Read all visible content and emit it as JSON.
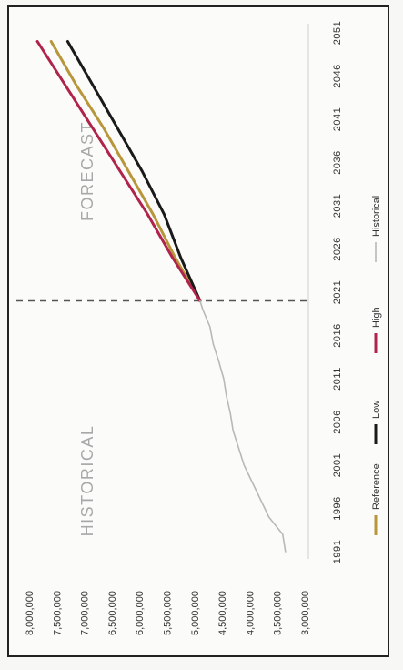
{
  "chart_data": {
    "type": "line",
    "title": "",
    "xlabel": "",
    "ylabel": "",
    "orientation_note_text": "",
    "x_ticks": [
      "1991",
      "1996",
      "2001",
      "2006",
      "2011",
      "2016",
      "2021",
      "2026",
      "2031",
      "2036",
      "2041",
      "2046",
      "2051"
    ],
    "y_ticks": [
      "3,000,000",
      "3,500,000",
      "4,000,000",
      "4,500,000",
      "5,000,000",
      "5,500,000",
      "6,000,000",
      "6,500,000",
      "7,000,000",
      "7,500,000",
      "8,000,000"
    ],
    "xlim": [
      1991,
      2051
    ],
    "ylim": [
      3000000,
      8000000
    ],
    "annotations": {
      "historical": "HISTORICAL",
      "forecast": "FORECAST"
    },
    "divider_year": 2020,
    "series": [
      {
        "name": "Reference",
        "color": "#b8963a",
        "x": [
          2020,
          2025,
          2030,
          2035,
          2040,
          2045,
          2050
        ],
        "y": [
          4900000,
          5350000,
          5750000,
          6200000,
          6650000,
          7150000,
          7600000
        ]
      },
      {
        "name": "Low",
        "color": "#1a1a1a",
        "x": [
          2020,
          2025,
          2030,
          2035,
          2040,
          2045,
          2050
        ],
        "y": [
          4900000,
          5250000,
          5550000,
          5950000,
          6400000,
          6850000,
          7300000
        ]
      },
      {
        "name": "High",
        "color": "#b0234a",
        "x": [
          2020,
          2025,
          2030,
          2035,
          2040,
          2045,
          2050
        ],
        "y": [
          4900000,
          5400000,
          5850000,
          6350000,
          6850000,
          7350000,
          7850000
        ]
      },
      {
        "name": "Historical",
        "color": "#b8b8b8",
        "x": [
          1991,
          1993,
          1995,
          1997,
          1999,
          2001,
          2003,
          2005,
          2007,
          2009,
          2011,
          2013,
          2015,
          2017,
          2019,
          2020
        ],
        "y": [
          3350000,
          3400000,
          3650000,
          3800000,
          3950000,
          4100000,
          4200000,
          4300000,
          4350000,
          4420000,
          4470000,
          4560000,
          4660000,
          4720000,
          4850000,
          4900000
        ]
      }
    ],
    "legend": [
      "Reference",
      "Low",
      "High",
      "Historical"
    ],
    "legend_position": "bottom",
    "grid": false
  }
}
